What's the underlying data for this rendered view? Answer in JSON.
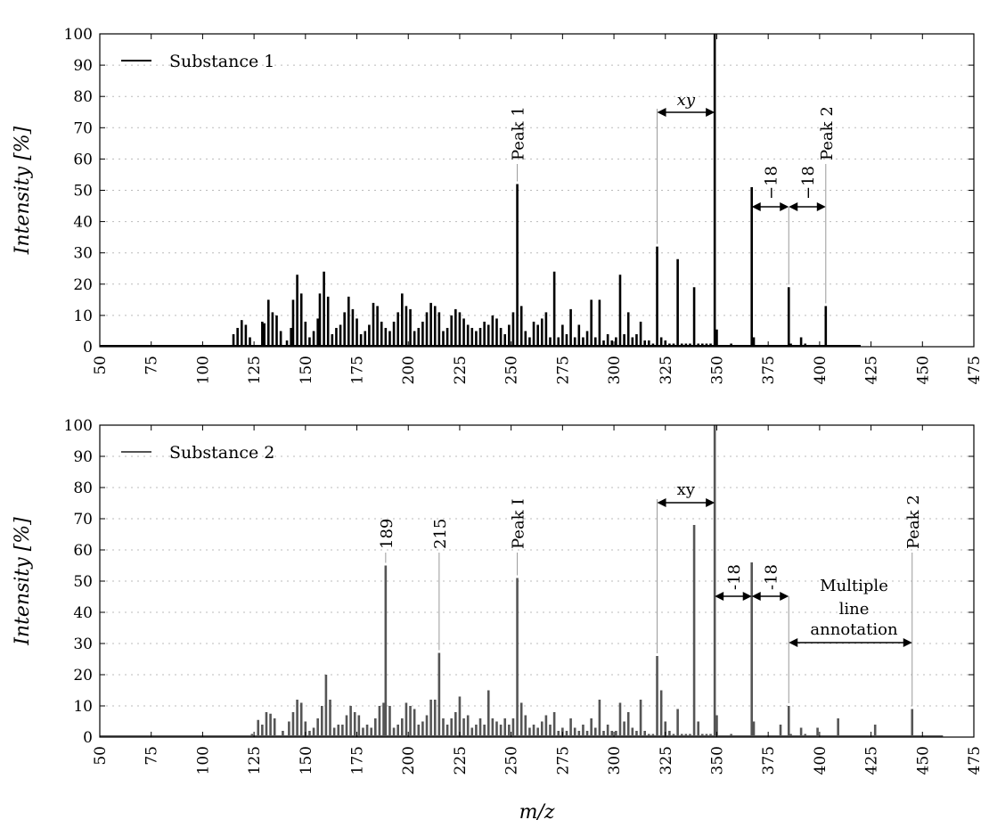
{
  "chart_data": [
    {
      "type": "bar",
      "panel": "top",
      "color": "#000000",
      "xlabel": "",
      "ylabel": "Intensity [%]",
      "xlim": [
        50,
        475
      ],
      "ylim": [
        0,
        100
      ],
      "xticks": [
        "50",
        "75",
        "100",
        "125",
        "150",
        "175",
        "200",
        "225",
        "250",
        "275",
        "300",
        "325",
        "350",
        "375",
        "400",
        "425",
        "450",
        "475"
      ],
      "yticks": [
        "0",
        "10",
        "20",
        "30",
        "40",
        "50",
        "60",
        "70",
        "80",
        "90",
        "100"
      ],
      "grid": "horizontal-dotted",
      "legend": {
        "placement": "top-left",
        "label": "Substance 1"
      },
      "series": [
        {
          "name": "Substance 1",
          "x": [
            115,
            117,
            119,
            121,
            123,
            129,
            130,
            132,
            134,
            136,
            138,
            141,
            143,
            144,
            146,
            148,
            150,
            152,
            154,
            156,
            157,
            159,
            161,
            163,
            165,
            167,
            169,
            171,
            173,
            175,
            177,
            179,
            181,
            183,
            185,
            187,
            189,
            191,
            193,
            195,
            197,
            199,
            201,
            203,
            205,
            207,
            209,
            211,
            213,
            215,
            217,
            219,
            221,
            223,
            225,
            227,
            229,
            231,
            233,
            235,
            237,
            239,
            241,
            243,
            245,
            247,
            249,
            251,
            253,
            255,
            257,
            259,
            261,
            263,
            265,
            267,
            269,
            271,
            273,
            275,
            277,
            279,
            281,
            283,
            285,
            287,
            289,
            291,
            293,
            295,
            297,
            299,
            301,
            303,
            305,
            307,
            309,
            311,
            313,
            315,
            317,
            319,
            321,
            323,
            325,
            327,
            329,
            331,
            333,
            335,
            337,
            339,
            341,
            343,
            345,
            347,
            349,
            350,
            357,
            367,
            368,
            385,
            386,
            391,
            393,
            403
          ],
          "values": [
            4,
            6,
            8.5,
            7,
            3,
            8,
            7.5,
            15,
            11,
            10,
            5,
            2,
            6,
            15,
            23,
            17,
            8,
            3,
            5,
            9,
            17,
            24,
            16,
            4,
            6,
            7,
            11,
            16,
            12,
            9,
            4,
            5,
            7,
            14,
            13,
            8,
            6,
            5,
            8,
            11,
            17,
            13,
            12,
            5,
            6,
            8,
            11,
            14,
            13,
            11,
            5,
            6,
            10,
            12,
            11,
            9,
            7,
            6,
            5,
            6,
            8,
            7,
            10,
            9,
            6,
            4,
            7,
            11,
            52,
            13,
            5,
            3,
            8,
            7,
            9,
            11,
            3,
            24,
            3,
            7,
            4,
            12,
            3,
            7,
            3,
            5,
            15,
            3,
            15,
            2,
            4,
            2,
            3,
            23,
            4,
            11,
            3,
            4,
            8,
            2,
            2,
            1,
            32,
            3,
            2,
            1,
            1,
            28,
            1,
            1,
            1,
            19,
            1,
            1,
            1,
            1,
            100,
            5.5,
            1,
            51,
            3,
            19,
            1,
            3,
            1,
            13
          ]
        }
      ],
      "annotations": [
        {
          "text": "Peak 1",
          "x": 253
        },
        {
          "text": "xy",
          "from": 321,
          "to": 349
        },
        {
          "text": "−18",
          "from": 367,
          "to": 385
        },
        {
          "text": "−18",
          "from": 385,
          "to": 403
        },
        {
          "text": "Peak 2",
          "x": 403
        }
      ]
    },
    {
      "type": "bar",
      "panel": "bottom",
      "color": "#555555",
      "xlabel": "m/z",
      "ylabel": "Intensity [%]",
      "xlim": [
        50,
        475
      ],
      "ylim": [
        0,
        100
      ],
      "xticks": [
        "50",
        "75",
        "100",
        "125",
        "150",
        "175",
        "200",
        "225",
        "250",
        "275",
        "300",
        "325",
        "350",
        "375",
        "400",
        "425",
        "450",
        "475"
      ],
      "yticks": [
        "0",
        "10",
        "20",
        "30",
        "40",
        "50",
        "60",
        "70",
        "80",
        "90",
        "100"
      ],
      "grid": "horizontal-dotted",
      "legend": {
        "placement": "top-left",
        "label": "Substance 2"
      },
      "series": [
        {
          "name": "Substance 2",
          "x": [
            124,
            127,
            129,
            131,
            133,
            135,
            139,
            142,
            144,
            146,
            148,
            150,
            152,
            154,
            156,
            158,
            160,
            162,
            164,
            166,
            168,
            170,
            172,
            174,
            176,
            178,
            180,
            182,
            184,
            186,
            188,
            189,
            191,
            193,
            195,
            197,
            199,
            201,
            203,
            205,
            207,
            209,
            211,
            213,
            215,
            217,
            219,
            221,
            223,
            225,
            227,
            229,
            231,
            233,
            235,
            237,
            239,
            241,
            243,
            245,
            247,
            249,
            251,
            253,
            255,
            257,
            259,
            261,
            263,
            265,
            267,
            269,
            271,
            273,
            275,
            277,
            279,
            281,
            283,
            285,
            287,
            289,
            291,
            293,
            295,
            297,
            299,
            301,
            303,
            305,
            307,
            309,
            311,
            313,
            315,
            317,
            319,
            321,
            323,
            325,
            327,
            329,
            331,
            333,
            335,
            337,
            339,
            341,
            343,
            345,
            347,
            349,
            350,
            357,
            367,
            368,
            381,
            385,
            386,
            391,
            393,
            399,
            409,
            427,
            445
          ],
          "values": [
            1,
            5.5,
            4,
            8,
            7.5,
            6,
            2,
            5,
            8,
            12,
            11,
            5,
            2,
            3,
            6,
            10,
            20,
            12,
            3,
            4,
            4,
            7,
            10,
            8,
            7,
            3,
            4,
            3,
            6,
            10,
            11,
            55,
            10,
            3,
            4,
            6,
            11,
            10,
            9,
            4,
            5,
            7,
            12,
            12,
            27,
            6,
            4,
            6,
            8,
            13,
            6,
            7,
            3,
            4,
            6,
            4,
            15,
            6,
            5,
            4,
            6,
            4,
            6,
            51,
            11,
            7,
            3,
            4,
            3,
            5,
            7,
            4,
            8,
            2,
            3,
            2,
            6,
            3,
            2,
            4,
            2,
            6,
            3,
            12,
            2,
            4,
            2,
            2,
            11,
            5,
            8,
            3,
            2,
            12,
            2,
            1,
            1,
            26,
            15,
            5,
            2,
            1,
            9,
            1,
            1,
            1,
            68,
            5,
            1,
            1,
            1,
            100,
            7,
            1,
            56,
            5,
            4,
            10,
            1,
            3,
            1,
            3,
            6,
            4,
            9
          ]
        }
      ],
      "annotations": [
        {
          "text": "189",
          "x": 189
        },
        {
          "text": "215",
          "x": 215
        },
        {
          "text": "Peak I",
          "x": 253
        },
        {
          "text": "xy",
          "from": 321,
          "to": 349
        },
        {
          "text": "-18",
          "from": 349,
          "to": 367
        },
        {
          "text": "-18",
          "from": 367,
          "to": 385
        },
        {
          "text": "Multiple",
          "line": 1
        },
        {
          "text": "line",
          "line": 2
        },
        {
          "text": "annotation",
          "line": 3,
          "from": 385,
          "to": 445
        },
        {
          "text": "Peak 2",
          "x": 445
        }
      ]
    }
  ]
}
